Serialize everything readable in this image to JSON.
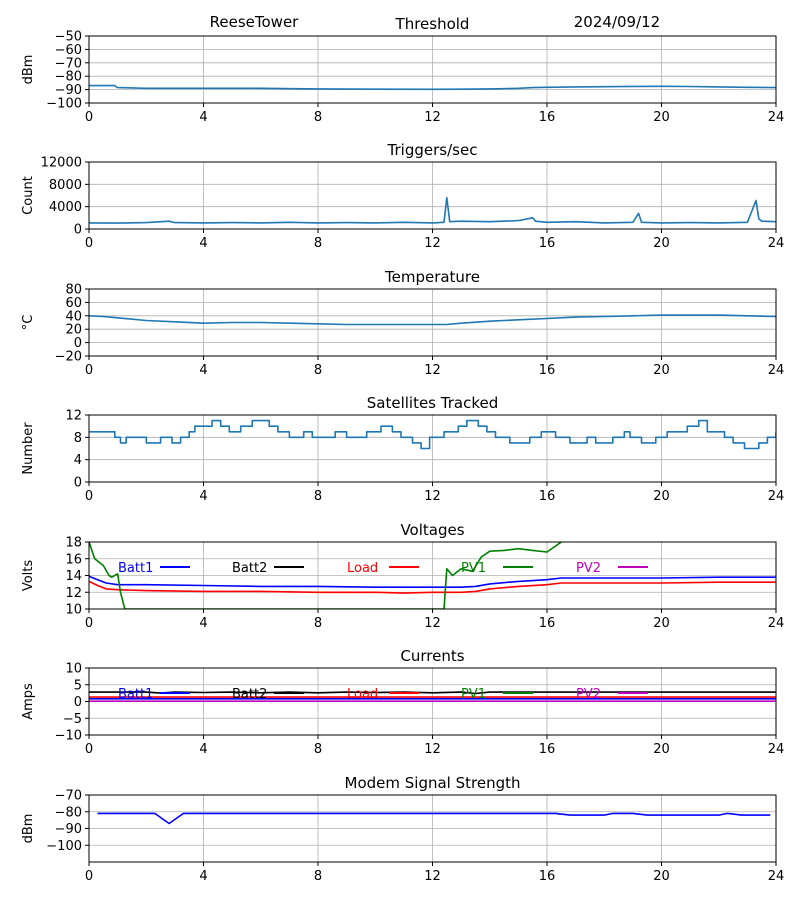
{
  "header": {
    "station": "ReeseTower",
    "date": "2024/09/12"
  },
  "colors": {
    "default": "#1f77b4",
    "batt1": "#0000ff",
    "batt2": "#000000",
    "load": "#ff0000",
    "pv1": "#008000",
    "pv2": "#bf00bf",
    "grid": "#b0b0b0"
  },
  "chart_data": [
    {
      "id": "threshold",
      "type": "line",
      "title": "Threshold",
      "ylabel": "dBm",
      "xlim": [
        0,
        24
      ],
      "ylim": [
        -100,
        -50
      ],
      "xticks": [
        0,
        4,
        8,
        12,
        16,
        20,
        24
      ],
      "yticks": [
        -100,
        -90,
        -80,
        -70,
        -60,
        -50
      ],
      "grid": true,
      "series": [
        {
          "color": "#1f77b4",
          "x": [
            0,
            0.9,
            1.0,
            2,
            4,
            6,
            8,
            10,
            12,
            13,
            14,
            15,
            15.5,
            16,
            17,
            18,
            19,
            20,
            21,
            22,
            23,
            24
          ],
          "y": [
            -87,
            -87,
            -88.5,
            -89,
            -89,
            -89,
            -89.5,
            -89.7,
            -89.8,
            -89.7,
            -89.5,
            -89,
            -88.5,
            -88.3,
            -88,
            -87.8,
            -87.6,
            -87.5,
            -87.7,
            -88,
            -88.3,
            -88.5
          ]
        }
      ]
    },
    {
      "id": "triggers",
      "type": "line",
      "title": "Triggers/sec",
      "ylabel": "Count",
      "xlim": [
        0,
        24
      ],
      "ylim": [
        0,
        12000
      ],
      "xticks": [
        0,
        4,
        8,
        12,
        16,
        20,
        24
      ],
      "yticks": [
        0,
        4000,
        8000,
        12000
      ],
      "grid": true,
      "series": [
        {
          "color": "#1f77b4",
          "x": [
            0,
            1,
            2,
            2.8,
            3,
            4,
            5,
            6,
            7,
            8,
            9,
            10,
            11,
            12,
            12.4,
            12.5,
            12.6,
            13,
            14,
            15,
            15.5,
            15.6,
            16,
            17,
            18,
            19,
            19.2,
            19.3,
            20,
            21,
            22,
            23,
            23.3,
            23.4,
            23.5,
            24
          ],
          "y": [
            1100,
            1050,
            1150,
            1400,
            1150,
            1100,
            1150,
            1100,
            1200,
            1100,
            1150,
            1100,
            1200,
            1100,
            1200,
            5600,
            1300,
            1400,
            1300,
            1500,
            2000,
            1400,
            1200,
            1300,
            1100,
            1200,
            2800,
            1200,
            1100,
            1150,
            1100,
            1200,
            5100,
            1800,
            1400,
            1300
          ]
        }
      ]
    },
    {
      "id": "temperature",
      "type": "line",
      "title": "Temperature",
      "ylabel": "°C",
      "xlim": [
        0,
        24
      ],
      "ylim": [
        -20,
        80
      ],
      "xticks": [
        0,
        4,
        8,
        12,
        16,
        20,
        24
      ],
      "yticks": [
        -20,
        0,
        20,
        40,
        60,
        80
      ],
      "grid": true,
      "series": [
        {
          "color": "#1f77b4",
          "x": [
            0,
            0.5,
            1,
            2,
            3,
            4,
            5,
            6,
            7,
            8,
            9,
            10,
            11,
            12,
            12.5,
            13,
            14,
            15,
            16,
            17,
            18,
            19,
            20,
            21,
            22,
            23,
            24
          ],
          "y": [
            40,
            39,
            37,
            33,
            31,
            29,
            30,
            30,
            29,
            28,
            27,
            27,
            27,
            27,
            27,
            29,
            32,
            34,
            36,
            38,
            39,
            40,
            41,
            41,
            41,
            40,
            39
          ]
        }
      ]
    },
    {
      "id": "satellites",
      "type": "line",
      "title": "Satellites Tracked",
      "ylabel": "Number",
      "xlim": [
        0,
        24
      ],
      "ylim": [
        0,
        12
      ],
      "xticks": [
        0,
        4,
        8,
        12,
        16,
        20,
        24
      ],
      "yticks": [
        0,
        4,
        8,
        12
      ],
      "grid": true,
      "step": true,
      "series": [
        {
          "color": "#1f77b4",
          "x": [
            0,
            0.9,
            1.1,
            1.3,
            2.0,
            2.5,
            2.9,
            3.2,
            3.5,
            3.7,
            4.3,
            4.6,
            4.9,
            5.3,
            5.7,
            6.3,
            6.6,
            7.0,
            7.5,
            7.8,
            8.6,
            9.0,
            9.7,
            10.2,
            10.6,
            10.9,
            11.3,
            11.6,
            11.9,
            12.4,
            12.9,
            13.2,
            13.6,
            13.9,
            14.2,
            14.7,
            15.4,
            15.8,
            16.3,
            16.8,
            17.4,
            17.7,
            18.3,
            18.7,
            18.9,
            19.3,
            19.8,
            20.2,
            20.9,
            21.3,
            21.6,
            22.2,
            22.5,
            22.9,
            23.4,
            23.7,
            24
          ],
          "y": [
            9,
            8,
            7,
            8,
            7,
            8,
            7,
            8,
            9,
            10,
            11,
            10,
            9,
            10,
            11,
            10,
            9,
            8,
            9,
            8,
            9,
            8,
            9,
            10,
            9,
            8,
            7,
            6,
            8,
            9,
            10,
            11,
            10,
            9,
            8,
            7,
            8,
            9,
            8,
            7,
            8,
            7,
            8,
            9,
            8,
            7,
            8,
            9,
            10,
            11,
            9,
            8,
            7,
            6,
            7,
            8,
            9
          ]
        }
      ]
    },
    {
      "id": "voltages",
      "type": "line",
      "title": "Voltages",
      "ylabel": "Volts",
      "xlim": [
        0,
        24
      ],
      "ylim": [
        10,
        18
      ],
      "xticks": [
        0,
        4,
        8,
        12,
        16,
        20,
        24
      ],
      "yticks": [
        10,
        12,
        14,
        16,
        18
      ],
      "grid": true,
      "legend": [
        "Batt1",
        "Batt2",
        "Load",
        "PV1",
        "PV2"
      ],
      "series": [
        {
          "name": "Batt1",
          "color": "#0000ff",
          "x": [
            0,
            0.3,
            0.6,
            1,
            2,
            4,
            6,
            8,
            10,
            12,
            13,
            13.5,
            14,
            15,
            16,
            16.5,
            18,
            20,
            22,
            24
          ],
          "y": [
            13.9,
            13.5,
            13.1,
            12.9,
            12.9,
            12.8,
            12.7,
            12.7,
            12.6,
            12.6,
            12.6,
            12.7,
            13.0,
            13.3,
            13.5,
            13.7,
            13.7,
            13.7,
            13.8,
            13.8
          ]
        },
        {
          "name": "Load",
          "color": "#ff0000",
          "x": [
            0,
            0.3,
            0.6,
            1,
            2,
            4,
            6,
            8,
            10,
            11,
            12,
            13,
            13.5,
            14,
            15,
            16,
            16.5,
            18,
            20,
            22,
            24
          ],
          "y": [
            13.3,
            12.8,
            12.4,
            12.3,
            12.2,
            12.1,
            12.1,
            12.0,
            12.0,
            11.9,
            12.0,
            12.0,
            12.1,
            12.4,
            12.7,
            12.9,
            13.1,
            13.1,
            13.1,
            13.2,
            13.2
          ]
        },
        {
          "name": "PV1",
          "color": "#008000",
          "x": [
            0,
            0.2,
            0.5,
            0.7,
            0.8,
            1.0,
            1.1,
            1.25,
            12.4,
            12.5,
            12.7,
            13.0,
            13.4,
            13.7,
            14.0,
            14.5,
            15.0,
            15.5,
            16.0,
            16.5
          ],
          "y": [
            18.0,
            16.0,
            15.2,
            14.0,
            13.8,
            14.2,
            12.0,
            10.0,
            10.0,
            14.8,
            14.0,
            14.8,
            14.5,
            16.2,
            16.9,
            17.0,
            17.2,
            17.0,
            16.8,
            18.0
          ]
        }
      ]
    },
    {
      "id": "currents",
      "type": "line",
      "title": "Currents",
      "ylabel": "Amps",
      "xlim": [
        0,
        24
      ],
      "ylim": [
        -10,
        10
      ],
      "xticks": [
        0,
        4,
        8,
        12,
        16,
        20,
        24
      ],
      "yticks": [
        -10,
        -5,
        0,
        5,
        10
      ],
      "grid": true,
      "legend": [
        "Batt1",
        "Batt2",
        "Load",
        "PV1",
        "PV2"
      ],
      "series": [
        {
          "name": "Batt2",
          "color": "#000000",
          "x": [
            0,
            1,
            2,
            2.5,
            3,
            4,
            5,
            6,
            7,
            8,
            9,
            10,
            11,
            12,
            13,
            13.5,
            14,
            16,
            18,
            20,
            22,
            24
          ],
          "y": [
            2.8,
            2.8,
            2.8,
            2.5,
            2.8,
            2.7,
            2.8,
            2.6,
            2.8,
            2.6,
            2.8,
            2.7,
            2.8,
            2.6,
            2.8,
            2.4,
            2.8,
            2.8,
            2.8,
            2.8,
            2.8,
            2.8
          ]
        },
        {
          "name": "Load",
          "color": "#ff0000",
          "x": [
            0,
            24
          ],
          "y": [
            1.3,
            1.3
          ]
        },
        {
          "name": "Batt1",
          "color": "#0000ff",
          "x": [
            0,
            24
          ],
          "y": [
            0.8,
            0.8
          ]
        },
        {
          "name": "PV2",
          "color": "#bf00bf",
          "x": [
            0,
            24
          ],
          "y": [
            0.1,
            0.1
          ]
        }
      ]
    },
    {
      "id": "modem",
      "type": "line",
      "title": "Modem Signal Strength",
      "ylabel": "dBm",
      "xlim": [
        0,
        24
      ],
      "ylim": [
        -110,
        -70
      ],
      "xticks": [
        0,
        4,
        8,
        12,
        16,
        20,
        24
      ],
      "yticks": [
        -100,
        -90,
        -80,
        -70
      ],
      "grid": true,
      "series": [
        {
          "color": "#0000ff",
          "x": [
            0.3,
            1,
            2.3,
            2.8,
            3.3,
            4,
            8,
            12,
            16,
            16.3,
            16.8,
            18,
            18.3,
            19,
            19.5,
            20,
            22,
            22.3,
            22.8,
            23.8
          ],
          "y": [
            -81,
            -81,
            -81,
            -87,
            -81,
            -81,
            -81,
            -81,
            -81,
            -81,
            -82,
            -82,
            -81,
            -81,
            -82,
            -82,
            -82,
            -81,
            -82,
            -82
          ]
        }
      ]
    }
  ]
}
